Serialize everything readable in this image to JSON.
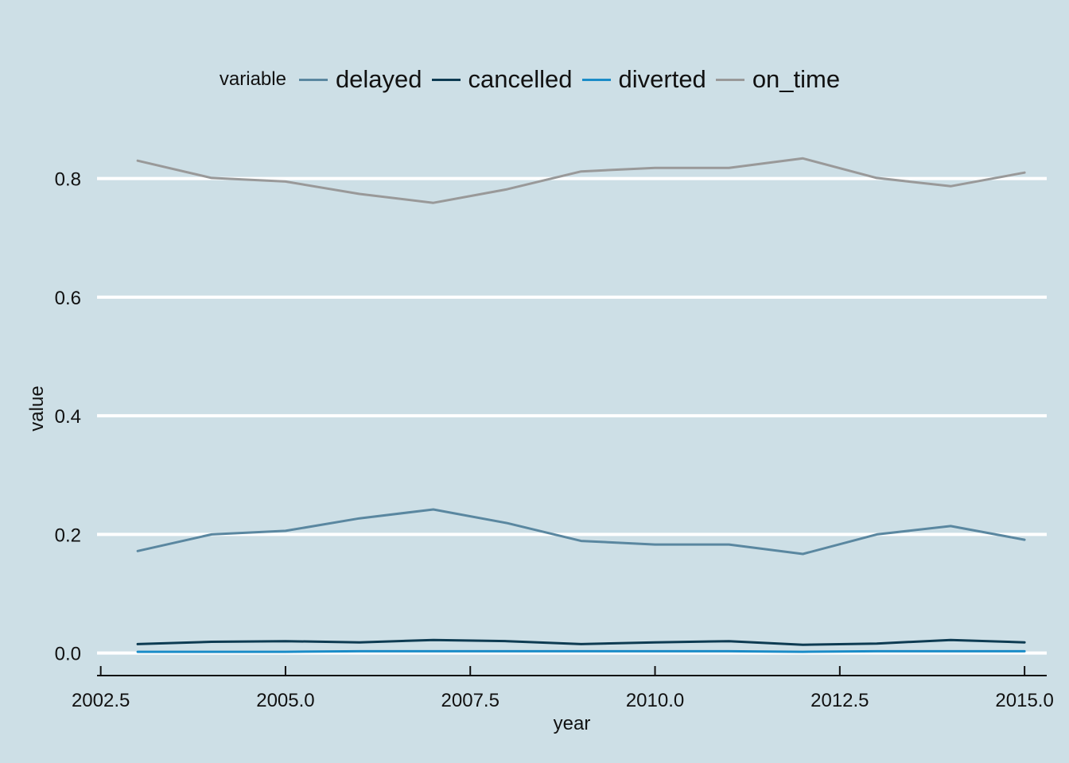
{
  "chart_data": {
    "type": "line",
    "title": "",
    "xlabel": "year",
    "ylabel": "value",
    "x": [
      2003,
      2004,
      2005,
      2006,
      2007,
      2008,
      2009,
      2010,
      2011,
      2012,
      2013,
      2014,
      2015
    ],
    "xlim": [
      2002.45,
      2015.3
    ],
    "ylim": [
      -0.038,
      0.9
    ],
    "x_ticks": [
      2002.5,
      2005.0,
      2007.5,
      2010.0,
      2012.5,
      2015.0
    ],
    "x_tick_labels": [
      "2002.5",
      "2005.0",
      "2007.5",
      "2010.0",
      "2012.5",
      "2015.0"
    ],
    "y_ticks": [
      0.0,
      0.2,
      0.4,
      0.6,
      0.8
    ],
    "y_tick_labels": [
      "0.0",
      "0.2",
      "0.4",
      "0.6",
      "0.8"
    ],
    "grid": "horizontal major, white",
    "legend_position": "top",
    "legend_title": "variable",
    "background_color": "#cddfe6",
    "series": [
      {
        "name": "delayed",
        "color": "#5a87a0",
        "values": [
          0.172,
          0.2,
          0.206,
          0.227,
          0.242,
          0.219,
          0.189,
          0.183,
          0.183,
          0.167,
          0.2,
          0.214,
          0.191
        ]
      },
      {
        "name": "cancelled",
        "color": "#0d3b52",
        "values": [
          0.015,
          0.019,
          0.02,
          0.018,
          0.022,
          0.02,
          0.015,
          0.018,
          0.02,
          0.014,
          0.016,
          0.022,
          0.018
        ]
      },
      {
        "name": "diverted",
        "color": "#1a8cc8",
        "values": [
          0.002,
          0.002,
          0.002,
          0.003,
          0.003,
          0.003,
          0.003,
          0.003,
          0.003,
          0.002,
          0.003,
          0.003,
          0.003
        ]
      },
      {
        "name": "on_time",
        "color": "#999999",
        "values": [
          0.83,
          0.801,
          0.795,
          0.774,
          0.759,
          0.782,
          0.812,
          0.818,
          0.818,
          0.834,
          0.801,
          0.787,
          0.81
        ]
      }
    ]
  }
}
